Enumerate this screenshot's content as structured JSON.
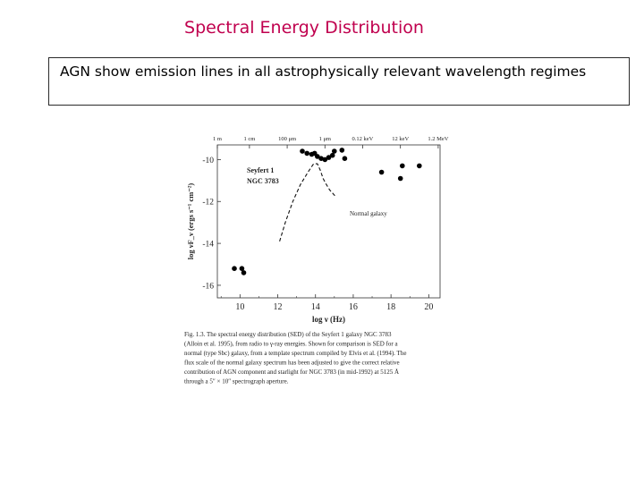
{
  "slide": {
    "title": "Spectral Energy Distribution",
    "box_text": "AGN show emission lines in all astrophysically relevant wavelength regimes"
  },
  "chart_data": {
    "type": "scatter",
    "xlabel": "log ν (Hz)",
    "ylabel": "log νF_ν (ergs s⁻¹ cm⁻²)",
    "xlim": [
      8.8,
      20.6
    ],
    "ylim": [
      -16.6,
      -9.3
    ],
    "x_ticks": [
      10,
      12,
      14,
      16,
      18,
      20
    ],
    "y_ticks": [
      -10,
      -12,
      -14,
      -16
    ],
    "top_axis_labels": [
      "1 m",
      "1 cm",
      "100 μm",
      "1 μm",
      "0.12 keV",
      "12 keV",
      "1.2 MeV"
    ],
    "top_axis_positions": [
      8.5,
      10.5,
      12.5,
      14.5,
      16.5,
      18.5,
      20.5
    ],
    "annotations": [
      "Seyfert 1",
      "NGC 3783",
      "Normal galaxy"
    ],
    "series": [
      {
        "name": "Seyfert 1 NGC 3783",
        "style": "points",
        "x": [
          9.7,
          10.1,
          10.2,
          13.3,
          13.55,
          13.8,
          13.95,
          14.1,
          14.3,
          14.5,
          14.7,
          14.9,
          15.0,
          15.4,
          15.55,
          17.5,
          18.5,
          18.6,
          19.5
        ],
        "y": [
          -15.2,
          -15.2,
          -15.4,
          -9.6,
          -9.7,
          -9.75,
          -9.7,
          -9.85,
          -9.95,
          -10.0,
          -9.9,
          -9.8,
          -9.6,
          -9.55,
          -9.95,
          -10.6,
          -10.9,
          -10.3,
          -10.3
        ]
      },
      {
        "name": "Normal galaxy",
        "style": "dashed",
        "x": [
          12.1,
          12.4,
          12.8,
          13.2,
          13.6,
          13.9,
          14.1,
          14.25,
          14.4,
          14.55,
          14.75,
          14.95,
          15.1
        ],
        "y": [
          -13.9,
          -13.0,
          -12.0,
          -11.2,
          -10.6,
          -10.2,
          -10.2,
          -10.5,
          -10.9,
          -11.15,
          -11.45,
          -11.65,
          -11.8
        ]
      }
    ],
    "caption": "Fig. 1.3. The spectral energy distribution (SED) of the Seyfert 1 galaxy NGC 3783 (Alloin et al. 1995), from radio to γ-ray energies. Shown for comparison is SED for a normal (type Sbc) galaxy, from a template spectrum compiled by Elvis et al. (1994). The flux scale of the normal galaxy spectrum has been adjusted to give the correct relative contribution of AGN component and starlight for NGC 3783 (in mid-1992) at 5125 Å through a 5″ × 10″ spectrograph aperture.",
    "caption_lines": [
      "Fig. 1.3.  The spectral energy distribution (SED) of the Seyfert 1 galaxy NGC 3783",
      "(Alloin et al. 1995), from radio to γ-ray energies. Shown for comparison is SED for a",
      "normal (type Sbc) galaxy, from a template spectrum compiled by Elvis et al. (1994). The",
      "flux scale of the normal galaxy spectrum has been adjusted to give the correct relative",
      "contribution of AGN component and starlight for NGC 3783 (in mid-1992) at 5125 Å",
      "through a 5″ × 10″ spectrograph aperture."
    ]
  }
}
